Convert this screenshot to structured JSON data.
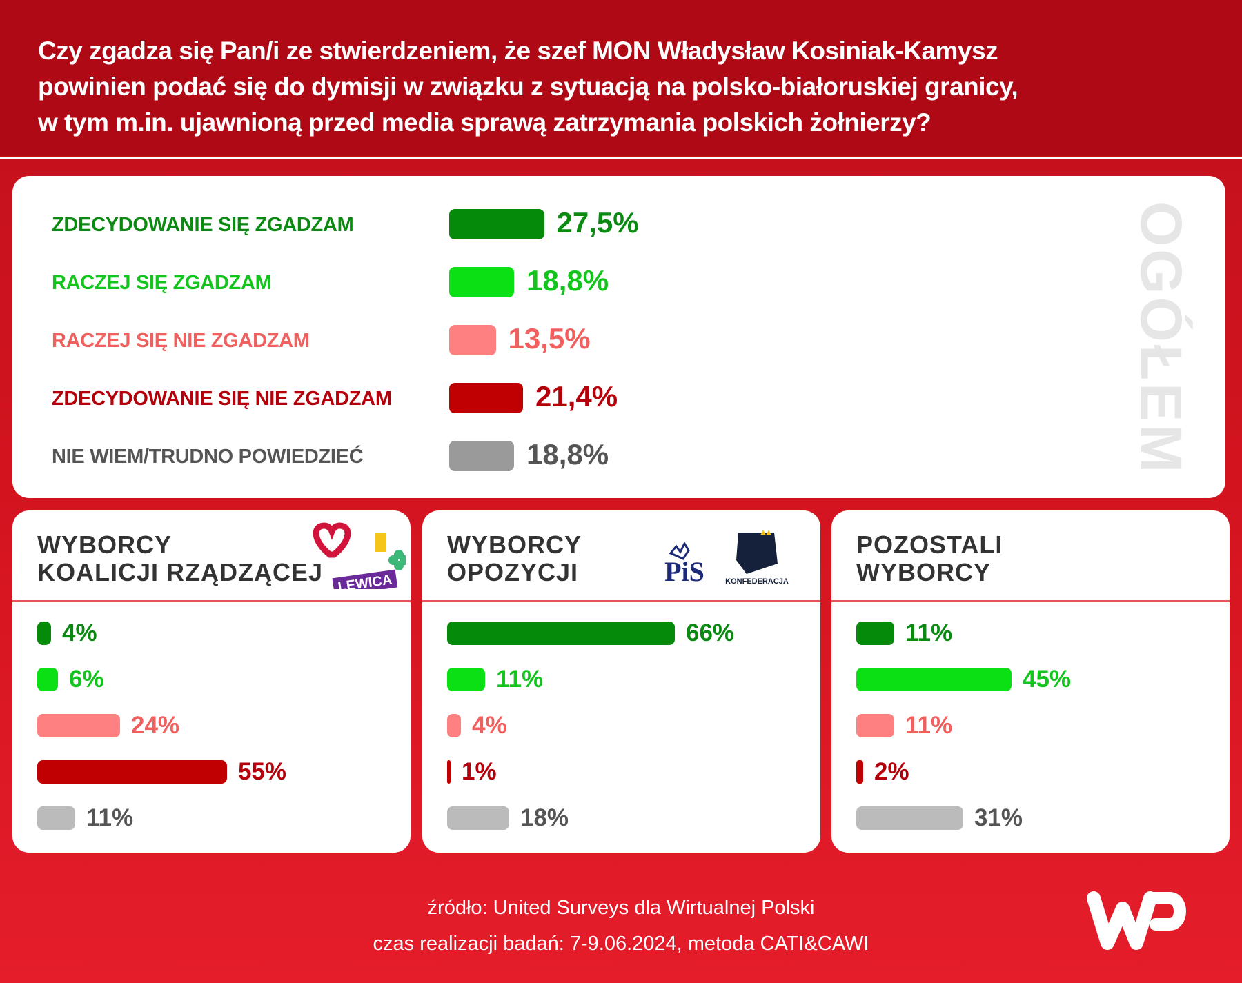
{
  "title": "Czy zgadza się Pan/i ze stwierdzeniem, że szef MON Władysław Kosiniak-Kamysz powinien podać się do dymisji w związku z sytuacją na polsko-białoruskiej granicy, w tym m.in. ujawnioną przed media sprawą zatrzymania polskich żołnierzy?",
  "title_lines": [
    "Czy zgadza się Pan/i ze stwierdzeniem, że szef MON Władysław Kosiniak-Kamysz",
    "powinien podać się do dymisji w związku z sytuacją na polsko-białoruskiej granicy,",
    "w tym m.in. ujawnioną przed media sprawą zatrzymania polskich żołnierzy?"
  ],
  "chart_data": [
    {
      "type": "bar",
      "orientation": "horizontal",
      "title": "OGÓŁEM",
      "categories": [
        "ZDECYDOWANIE SIĘ ZGADZAM",
        "RACZEJ SIĘ ZGADZAM",
        "RACZEJ SIĘ NIE ZGADZAM",
        "ZDECYDOWANIE SIĘ NIE ZGADZAM",
        "NIE WIEM/TRUDNO POWIEDZIEĆ"
      ],
      "values": [
        27.5,
        18.8,
        13.5,
        21.4,
        18.8
      ],
      "labels": [
        "27,5%",
        "18,8%",
        "13,5%",
        "21,4%",
        "18,8%"
      ],
      "colors": [
        "#068a0a",
        "#0ae014",
        "#ff8080",
        "#c00000",
        "#9a9a9a"
      ],
      "text_colors": [
        "#0b8a12",
        "#12c41c",
        "#f0605f",
        "#b4000a",
        "#555555"
      ]
    },
    {
      "type": "bar",
      "orientation": "horizontal",
      "title": "WYBORCY KOALICJI RZĄDZĄCEJ",
      "title_lines": [
        "WYBORCY",
        "KOALICJI RZĄDZĄCEJ"
      ],
      "values": [
        4,
        6,
        24,
        55,
        11
      ],
      "labels": [
        "4%",
        "6%",
        "24%",
        "55%",
        "11%"
      ],
      "logos": [
        "KO heart",
        "Trzecia Droga",
        "LEWICA"
      ]
    },
    {
      "type": "bar",
      "orientation": "horizontal",
      "title": "WYBORCY OPOZYCJI",
      "title_lines": [
        "WYBORCY",
        "OPOZYCJI"
      ],
      "values": [
        66,
        11,
        4,
        1,
        18
      ],
      "labels": [
        "66%",
        "11%",
        "4%",
        "1%",
        "18%"
      ],
      "logos": [
        "PiS",
        "KONFEDERACJA"
      ]
    },
    {
      "type": "bar",
      "orientation": "horizontal",
      "title": "POZOSTALI WYBORCY",
      "title_lines": [
        "POZOSTALI",
        "WYBORCY"
      ],
      "values": [
        11,
        45,
        11,
        2,
        31
      ],
      "labels": [
        "11%",
        "45%",
        "11%",
        "2%",
        "31%"
      ]
    }
  ],
  "sub_colors": [
    "#068a0a",
    "#0ae014",
    "#ff8080",
    "#c00000",
    "#bbbbbb"
  ],
  "sub_text_colors": [
    "#0b8a12",
    "#12c41c",
    "#f0605f",
    "#b4000a",
    "#555555"
  ],
  "footer": {
    "source": "źródło: United Surveys dla Wirtualnej Polski",
    "date": "czas realizacji badań: 7-9.06.2024, metoda CATI&CAWI"
  },
  "brand_logo": "WP"
}
